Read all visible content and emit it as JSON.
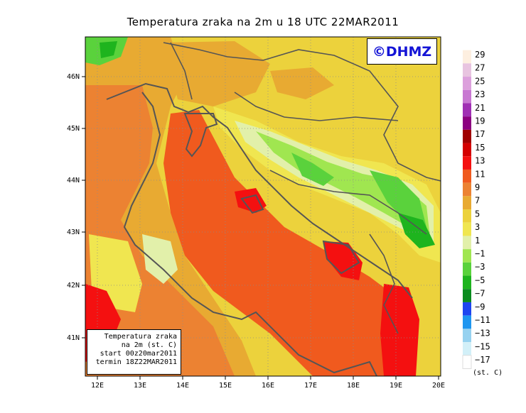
{
  "title": "Temperatura zraka na 2m u 18 UTC 22MAR2011",
  "logo_text": "©DHMZ",
  "info_box": {
    "line1": "Temperatura zraka",
    "line2": "na 2m (st. C)",
    "line3": "start 00z20mar2011",
    "line4": "termin 18Z22MAR2011"
  },
  "x_ticks": [
    "12E",
    "13E",
    "14E",
    "15E",
    "16E",
    "17E",
    "18E",
    "19E",
    "20E"
  ],
  "y_ticks": [
    "46N",
    "45N",
    "44N",
    "43N",
    "42N",
    "41N"
  ],
  "legend": {
    "labels": [
      "29",
      "27",
      "25",
      "23",
      "21",
      "19",
      "17",
      "15",
      "13",
      "11",
      "9",
      "7",
      "5",
      "3",
      "1",
      "−1",
      "−3",
      "−5",
      "−7",
      "−9",
      "−11",
      "−13",
      "−15",
      "−17"
    ],
    "unit": "(st. C)",
    "colors": [
      "#fdefe0",
      "#e8c4e0",
      "#dca0dc",
      "#c878d2",
      "#a030b4",
      "#8c0080",
      "#a00000",
      "#d40000",
      "#f41010",
      "#f05a1e",
      "#ec8232",
      "#e8aa32",
      "#ecd23c",
      "#f0e650",
      "#e2f0aa",
      "#a0e650",
      "#5ad23c",
      "#1eb41e",
      "#0a8c1e",
      "#1e46f0",
      "#1e96f0",
      "#96d2f0",
      "#d2f0f8",
      "#ffffff"
    ]
  }
}
